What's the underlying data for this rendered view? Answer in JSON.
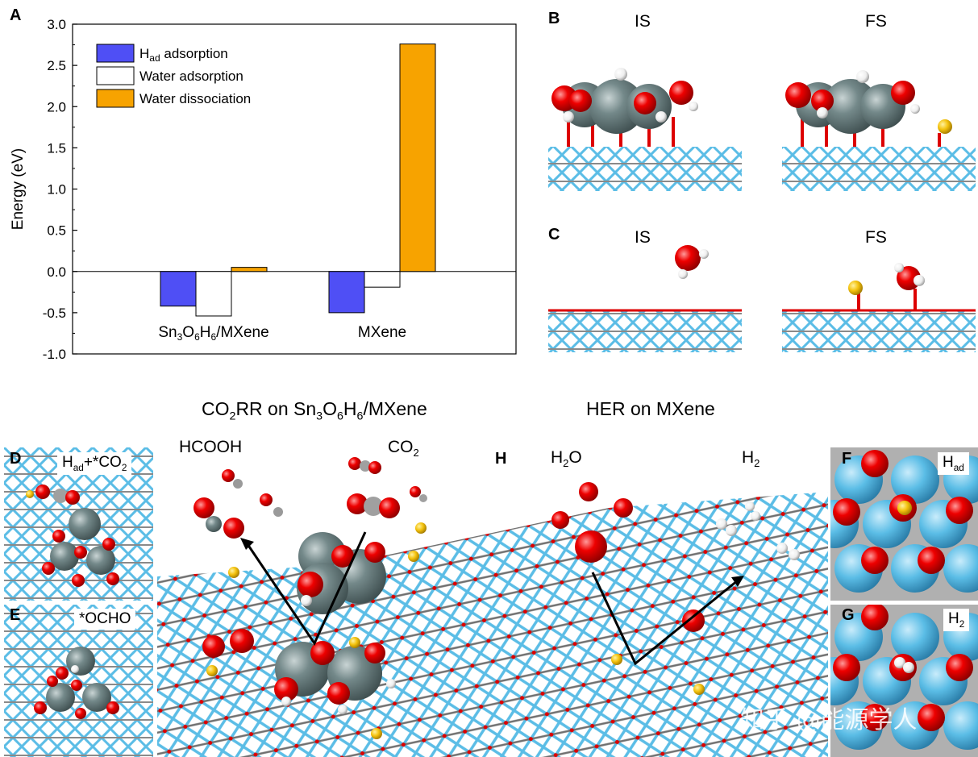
{
  "panels": {
    "A": "A",
    "B": "B",
    "C": "C",
    "D": "D",
    "E": "E",
    "F": "F",
    "G": "G",
    "H": "H"
  },
  "chart_data": {
    "type": "bar",
    "categories": [
      "Sn3O6H6/MXene",
      "MXene"
    ],
    "category_parts": [
      [
        [
          "Sn",
          ""
        ],
        [
          "3",
          "sub"
        ],
        [
          "O",
          ""
        ],
        [
          "6",
          "sub"
        ],
        [
          "H",
          ""
        ],
        [
          "6",
          "sub"
        ],
        [
          "/MXene",
          ""
        ]
      ],
      [
        [
          "MXene",
          ""
        ]
      ]
    ],
    "series": [
      {
        "name": "Had adsorption",
        "name_parts": [
          [
            "H",
            ""
          ],
          [
            "ad",
            "sub"
          ],
          [
            " adsorption",
            ""
          ]
        ],
        "color": "#4f4ff5",
        "values": [
          -0.42,
          -0.5
        ]
      },
      {
        "name": "Water adsorption",
        "name_parts": [
          [
            "Water adsorption",
            ""
          ]
        ],
        "color": "#ffffff",
        "values": [
          -0.54,
          -0.19
        ]
      },
      {
        "name": "Water dissociation",
        "name_parts": [
          [
            "Water dissociation",
            ""
          ]
        ],
        "color": "#f7a300",
        "values": [
          0.05,
          2.76
        ]
      }
    ],
    "ylabel": "Energy (eV)",
    "ylim": [
      -1.0,
      3.0
    ],
    "yticks": [
      "-1.0",
      "-0.5",
      "0.0",
      "0.5",
      "1.0",
      "1.5",
      "2.0",
      "2.5",
      "3.0"
    ],
    "legend": "top-left",
    "grid": false
  },
  "structures": {
    "B_is": "IS",
    "B_fs": "FS",
    "C_is": "IS",
    "C_fs": "FS",
    "co2rr_title": "CO2RR on Sn3O6H6/MXene",
    "hcooh": "HCOOH",
    "co2": "CO2",
    "her_title": "HER on MXene",
    "h2o": "H2O",
    "h2": "H2",
    "d_label": "Had+*CO2",
    "e_label": "*OCHO",
    "f_label": "Had",
    "g_label": "H2"
  },
  "watermark": "知乎 @能源学人",
  "colors": {
    "sn": "#74898a",
    "o": "#ee0000",
    "h": "#ffffff",
    "ti": "#5bbde6",
    "c": "#9a9a9a",
    "had": "#f4c20d"
  }
}
